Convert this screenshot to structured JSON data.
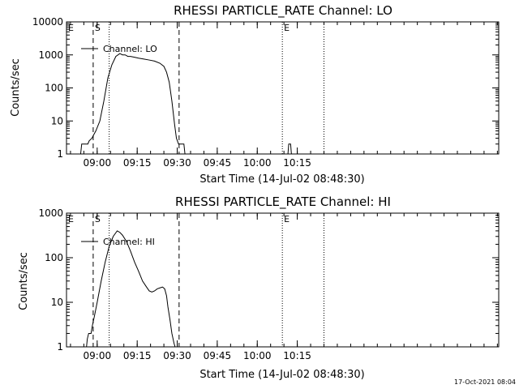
{
  "stamp": "17-Oct-2021 08:04",
  "chart_data": [
    {
      "type": "line",
      "title": "RHESSI PARTICLE_RATE Channel: LO",
      "xlabel": "Start Time (14-Jul-02 08:48:30)",
      "ylabel": "Counts/sec",
      "yscale": "log",
      "ylim": [
        1,
        10000
      ],
      "xlim_min": [
        0,
        162
      ],
      "x_ticks": [
        {
          "min": 11.5,
          "label": "09:00"
        },
        {
          "min": 26.5,
          "label": "09:15"
        },
        {
          "min": 41.5,
          "label": "09:30"
        },
        {
          "min": 56.5,
          "label": "09:45"
        },
        {
          "min": 71.5,
          "label": "10:00"
        },
        {
          "min": 86.5,
          "label": "10:15"
        }
      ],
      "y_ticks": [
        {
          "value": 1,
          "label": "1"
        },
        {
          "value": 10,
          "label": "10"
        },
        {
          "value": 100,
          "label": "100"
        },
        {
          "value": 1000,
          "label": "1000"
        },
        {
          "value": 10000,
          "label": "10000"
        }
      ],
      "legend": "Channel: LO",
      "legend_position": "top-left",
      "markers": [
        {
          "min": 0,
          "label": "E",
          "style": "dashed"
        },
        {
          "min": 10,
          "label": "S",
          "style": "dashed"
        },
        {
          "min": 16,
          "label": "",
          "style": "dotted"
        },
        {
          "min": 42.2,
          "label": "",
          "style": "dashed"
        },
        {
          "min": 80.9,
          "label": "E",
          "style": "dotted"
        },
        {
          "min": 96.5,
          "label": "",
          "style": "dotted"
        }
      ],
      "series": [
        {
          "name": "Channel: LO",
          "segments": [
            [
              [
                5.3,
                1
              ],
              [
                5.7,
                2
              ],
              [
                8.0,
                2
              ],
              [
                8.5,
                2.5
              ],
              [
                9.5,
                3
              ],
              [
                11.0,
                5
              ],
              [
                12.5,
                10
              ],
              [
                14.0,
                40
              ],
              [
                15.5,
                200
              ],
              [
                17.0,
                500
              ],
              [
                18.5,
                900
              ],
              [
                20.0,
                1100
              ],
              [
                21.0,
                1000
              ],
              [
                22.0,
                1000
              ],
              [
                23.0,
                900
              ],
              [
                24.0,
                900
              ],
              [
                25.5,
                850
              ],
              [
                27.0,
                800
              ],
              [
                29.0,
                750
              ],
              [
                31.0,
                700
              ],
              [
                33.0,
                650
              ],
              [
                35.0,
                560
              ],
              [
                36.5,
                450
              ],
              [
                37.5,
                300
              ],
              [
                38.5,
                150
              ],
              [
                39.5,
                40
              ],
              [
                40.5,
                8
              ],
              [
                41.2,
                3
              ],
              [
                42.0,
                2
              ],
              [
                43.0,
                2
              ],
              [
                44.0,
                2
              ],
              [
                44.4,
                1
              ]
            ],
            [
              [
                83.0,
                1
              ],
              [
                83.3,
                2
              ],
              [
                84.0,
                2
              ],
              [
                84.3,
                1
              ]
            ]
          ]
        }
      ]
    },
    {
      "type": "line",
      "title": "RHESSI PARTICLE_RATE Channel: HI",
      "xlabel": "Start Time (14-Jul-02 08:48:30)",
      "ylabel": "Counts/sec",
      "yscale": "log",
      "ylim": [
        1,
        1000
      ],
      "xlim_min": [
        0,
        162
      ],
      "x_ticks": [
        {
          "min": 11.5,
          "label": "09:00"
        },
        {
          "min": 26.5,
          "label": "09:15"
        },
        {
          "min": 41.5,
          "label": "09:30"
        },
        {
          "min": 56.5,
          "label": "09:45"
        },
        {
          "min": 71.5,
          "label": "10:00"
        },
        {
          "min": 86.5,
          "label": "10:15"
        }
      ],
      "y_ticks": [
        {
          "value": 1,
          "label": "1"
        },
        {
          "value": 10,
          "label": "10"
        },
        {
          "value": 100,
          "label": "100"
        },
        {
          "value": 1000,
          "label": "1000"
        }
      ],
      "legend": "Channel: HI",
      "legend_position": "top-left",
      "markers": [
        {
          "min": 0,
          "label": "E",
          "style": "dashed"
        },
        {
          "min": 10,
          "label": "S",
          "style": "dashed"
        },
        {
          "min": 16,
          "label": "",
          "style": "dotted"
        },
        {
          "min": 42.2,
          "label": "",
          "style": "dashed"
        },
        {
          "min": 80.9,
          "label": "E",
          "style": "dotted"
        },
        {
          "min": 96.5,
          "label": "",
          "style": "dotted"
        }
      ],
      "series": [
        {
          "name": "Channel: HI",
          "segments": [
            [
              [
                7.5,
                1
              ],
              [
                7.8,
                1.5
              ],
              [
                8.3,
                2
              ],
              [
                9.2,
                2
              ],
              [
                9.7,
                3
              ],
              [
                10.5,
                5
              ],
              [
                11.5,
                10
              ],
              [
                13.0,
                30
              ],
              [
                14.5,
                80
              ],
              [
                16.0,
                180
              ],
              [
                17.5,
                300
              ],
              [
                19.0,
                400
              ],
              [
                20.0,
                370
              ],
              [
                21.0,
                320
              ],
              [
                22.5,
                230
              ],
              [
                24.0,
                140
              ],
              [
                25.5,
                80
              ],
              [
                27.0,
                50
              ],
              [
                28.5,
                30
              ],
              [
                30.0,
                22
              ],
              [
                31.0,
                18
              ],
              [
                32.0,
                17
              ],
              [
                33.0,
                18
              ],
              [
                34.0,
                20
              ],
              [
                35.0,
                21
              ],
              [
                36.0,
                22
              ],
              [
                36.8,
                20
              ],
              [
                37.5,
                14
              ],
              [
                38.0,
                8
              ],
              [
                38.8,
                4
              ],
              [
                39.5,
                2
              ],
              [
                40.3,
                1.2
              ],
              [
                40.7,
                1
              ]
            ]
          ]
        }
      ]
    }
  ]
}
